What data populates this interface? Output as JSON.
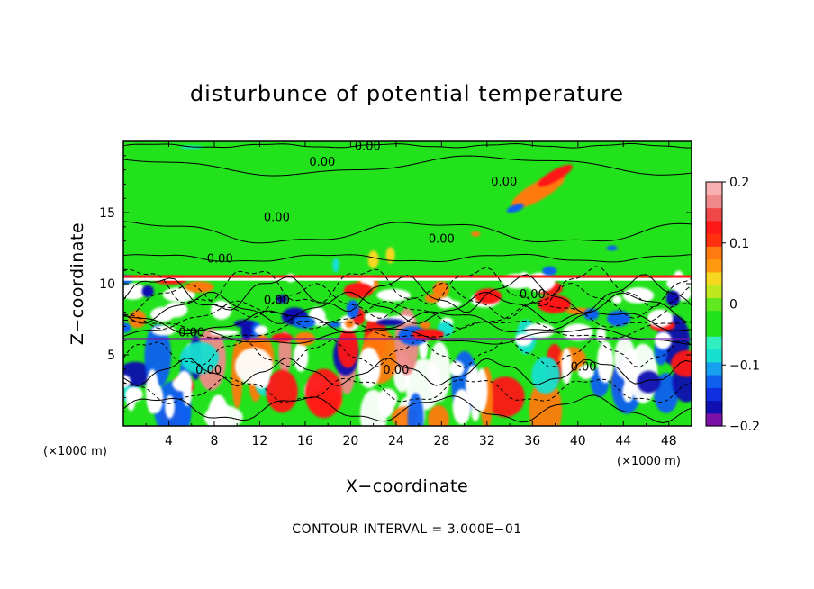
{
  "chart_data": {
    "type": "heatmap",
    "title": "disturbunce of potential temperature",
    "xlabel": "X−coordinate",
    "ylabel": "Z−coordinate",
    "x_unit_label": "(×1000 m)",
    "x_unit_label_right": "(×1000 m)",
    "xlim": [
      0,
      50
    ],
    "ylim": [
      0,
      20
    ],
    "x_ticks": [
      4,
      8,
      12,
      16,
      20,
      24,
      28,
      32,
      36,
      40,
      44,
      48
    ],
    "y_ticks": [
      5,
      10,
      15
    ],
    "colorbar": {
      "range": [
        -0.2,
        0.2
      ],
      "ticks": [
        0.2,
        0.1,
        0,
        -0.1,
        -0.2
      ],
      "tick_labels": [
        "0.2",
        "0.1",
        "0",
        "−0.1",
        "−0.2"
      ]
    },
    "contour_interval_text": "CONTOUR INTERVAL = 3.000E−01",
    "contour_labels": [
      {
        "text": "0.00",
        "x": 21.5,
        "z": 19.7
      },
      {
        "text": "0.00",
        "x": 17.5,
        "z": 18.6
      },
      {
        "text": "0.00",
        "x": 33.5,
        "z": 17.2
      },
      {
        "text": "0.00",
        "x": 13.5,
        "z": 14.7
      },
      {
        "text": "0.00",
        "x": 28.0,
        "z": 13.2
      },
      {
        "text": "0.00",
        "x": 8.5,
        "z": 11.8
      },
      {
        "text": "0.00",
        "x": 13.5,
        "z": 8.9
      },
      {
        "text": "0.00",
        "x": 36.0,
        "z": 9.3
      },
      {
        "text": "0.00",
        "x": 6.0,
        "z": 6.6
      },
      {
        "text": "0.00",
        "x": 7.5,
        "z": 4.0
      },
      {
        "text": "0.00",
        "x": 24.0,
        "z": 4.0
      },
      {
        "text": "0.00",
        "x": 40.5,
        "z": 4.2
      }
    ],
    "colors": {
      "neutral": "#22e21c",
      "positive": [
        "#f6d820",
        "#ff7a10",
        "#ff1818",
        "#f08a8a"
      ],
      "negative": [
        "#18e0d0",
        "#1060f0",
        "#1010b0",
        "#7a10a8"
      ],
      "saturated": "#ffffff"
    }
  }
}
